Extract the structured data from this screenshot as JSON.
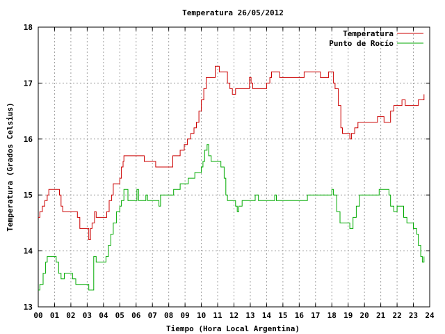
{
  "chart_data": {
    "type": "line",
    "title": "Temperatura 26/05/2012",
    "xlabel": "Tiempo (Hora Local Argentina)",
    "ylabel": "Temperatura (Grados Celsius)",
    "xlim": [
      0,
      24
    ],
    "ylim": [
      13,
      18
    ],
    "xticks": [
      "00",
      "01",
      "02",
      "03",
      "04",
      "05",
      "06",
      "07",
      "08",
      "09",
      "10",
      "11",
      "12",
      "13",
      "14",
      "15",
      "16",
      "17",
      "18",
      "19",
      "20",
      "21",
      "22",
      "23",
      "24"
    ],
    "yticks": [
      "13",
      "14",
      "15",
      "16",
      "17",
      "18"
    ],
    "grid": true,
    "legend_position": "top-right",
    "series": [
      {
        "name": "Temperatura",
        "color": "#cc0000",
        "points": [
          [
            0.0,
            14.6
          ],
          [
            0.1,
            14.7
          ],
          [
            0.25,
            14.8
          ],
          [
            0.4,
            14.9
          ],
          [
            0.55,
            15.0
          ],
          [
            0.65,
            15.1
          ],
          [
            1.2,
            15.1
          ],
          [
            1.3,
            15.0
          ],
          [
            1.4,
            14.8
          ],
          [
            1.5,
            14.7
          ],
          [
            1.6,
            14.7
          ],
          [
            2.2,
            14.7
          ],
          [
            2.4,
            14.6
          ],
          [
            2.55,
            14.4
          ],
          [
            3.0,
            14.4
          ],
          [
            3.1,
            14.2
          ],
          [
            3.2,
            14.4
          ],
          [
            3.3,
            14.5
          ],
          [
            3.45,
            14.7
          ],
          [
            3.55,
            14.6
          ],
          [
            4.1,
            14.6
          ],
          [
            4.2,
            14.7
          ],
          [
            4.35,
            14.9
          ],
          [
            4.5,
            15.0
          ],
          [
            4.6,
            15.2
          ],
          [
            4.9,
            15.2
          ],
          [
            5.0,
            15.3
          ],
          [
            5.1,
            15.5
          ],
          [
            5.2,
            15.6
          ],
          [
            5.25,
            15.7
          ],
          [
            6.4,
            15.7
          ],
          [
            6.5,
            15.6
          ],
          [
            7.1,
            15.6
          ],
          [
            7.2,
            15.5
          ],
          [
            8.1,
            15.5
          ],
          [
            8.25,
            15.7
          ],
          [
            8.5,
            15.7
          ],
          [
            8.7,
            15.8
          ],
          [
            8.95,
            15.9
          ],
          [
            9.15,
            16.0
          ],
          [
            9.35,
            16.1
          ],
          [
            9.55,
            16.2
          ],
          [
            9.7,
            16.3
          ],
          [
            9.85,
            16.5
          ],
          [
            10.0,
            16.7
          ],
          [
            10.15,
            16.9
          ],
          [
            10.3,
            17.1
          ],
          [
            10.5,
            17.1
          ],
          [
            10.7,
            17.1
          ],
          [
            10.85,
            17.3
          ],
          [
            11.0,
            17.3
          ],
          [
            11.1,
            17.2
          ],
          [
            11.5,
            17.2
          ],
          [
            11.6,
            17.0
          ],
          [
            11.75,
            16.9
          ],
          [
            11.9,
            16.8
          ],
          [
            12.1,
            16.9
          ],
          [
            12.8,
            16.9
          ],
          [
            12.95,
            17.1
          ],
          [
            13.05,
            17.0
          ],
          [
            13.15,
            16.9
          ],
          [
            13.9,
            16.9
          ],
          [
            14.0,
            17.0
          ],
          [
            14.2,
            17.1
          ],
          [
            14.3,
            17.2
          ],
          [
            14.7,
            17.2
          ],
          [
            14.8,
            17.1
          ],
          [
            16.2,
            17.1
          ],
          [
            16.3,
            17.2
          ],
          [
            17.1,
            17.2
          ],
          [
            17.3,
            17.1
          ],
          [
            17.8,
            17.2
          ],
          [
            18.0,
            17.2
          ],
          [
            18.1,
            17.0
          ],
          [
            18.2,
            16.9
          ],
          [
            18.4,
            16.6
          ],
          [
            18.55,
            16.2
          ],
          [
            18.65,
            16.1
          ],
          [
            19.0,
            16.1
          ],
          [
            19.1,
            16.0
          ],
          [
            19.2,
            16.1
          ],
          [
            19.4,
            16.2
          ],
          [
            19.6,
            16.3
          ],
          [
            20.6,
            16.3
          ],
          [
            20.8,
            16.4
          ],
          [
            21.1,
            16.4
          ],
          [
            21.2,
            16.3
          ],
          [
            21.4,
            16.3
          ],
          [
            21.6,
            16.5
          ],
          [
            21.8,
            16.6
          ],
          [
            22.2,
            16.6
          ],
          [
            22.3,
            16.7
          ],
          [
            22.5,
            16.6
          ],
          [
            23.1,
            16.6
          ],
          [
            23.3,
            16.7
          ],
          [
            23.5,
            16.7
          ],
          [
            23.65,
            16.8
          ]
        ]
      },
      {
        "name": "Punto de Rocío",
        "color": "#00aa00",
        "points": [
          [
            0.0,
            13.3
          ],
          [
            0.1,
            13.4
          ],
          [
            0.3,
            13.6
          ],
          [
            0.45,
            13.8
          ],
          [
            0.55,
            13.9
          ],
          [
            1.0,
            13.9
          ],
          [
            1.1,
            13.8
          ],
          [
            1.25,
            13.6
          ],
          [
            1.4,
            13.5
          ],
          [
            1.6,
            13.6
          ],
          [
            2.0,
            13.6
          ],
          [
            2.1,
            13.5
          ],
          [
            2.3,
            13.4
          ],
          [
            2.5,
            13.4
          ],
          [
            3.0,
            13.4
          ],
          [
            3.1,
            13.3
          ],
          [
            3.3,
            13.3
          ],
          [
            3.4,
            13.9
          ],
          [
            3.55,
            13.8
          ],
          [
            4.0,
            13.8
          ],
          [
            4.15,
            13.9
          ],
          [
            4.3,
            14.1
          ],
          [
            4.45,
            14.3
          ],
          [
            4.6,
            14.5
          ],
          [
            4.8,
            14.7
          ],
          [
            5.0,
            14.8
          ],
          [
            5.1,
            14.9
          ],
          [
            5.25,
            15.1
          ],
          [
            5.45,
            15.1
          ],
          [
            5.5,
            14.9
          ],
          [
            6.0,
            14.9
          ],
          [
            6.05,
            15.1
          ],
          [
            6.15,
            14.9
          ],
          [
            6.5,
            14.9
          ],
          [
            6.6,
            15.0
          ],
          [
            6.7,
            14.9
          ],
          [
            7.3,
            14.9
          ],
          [
            7.4,
            14.8
          ],
          [
            7.5,
            15.0
          ],
          [
            8.2,
            15.0
          ],
          [
            8.3,
            15.1
          ],
          [
            8.5,
            15.1
          ],
          [
            8.7,
            15.2
          ],
          [
            9.0,
            15.2
          ],
          [
            9.2,
            15.3
          ],
          [
            9.5,
            15.3
          ],
          [
            9.6,
            15.4
          ],
          [
            9.8,
            15.4
          ],
          [
            10.0,
            15.5
          ],
          [
            10.1,
            15.6
          ],
          [
            10.2,
            15.8
          ],
          [
            10.35,
            15.9
          ],
          [
            10.45,
            15.7
          ],
          [
            10.6,
            15.6
          ],
          [
            11.1,
            15.6
          ],
          [
            11.2,
            15.5
          ],
          [
            11.4,
            15.3
          ],
          [
            11.5,
            15.0
          ],
          [
            11.6,
            14.9
          ],
          [
            12.0,
            14.9
          ],
          [
            12.1,
            14.8
          ],
          [
            12.2,
            14.7
          ],
          [
            12.3,
            14.8
          ],
          [
            12.5,
            14.9
          ],
          [
            12.9,
            14.9
          ],
          [
            13.1,
            14.9
          ],
          [
            13.3,
            15.0
          ],
          [
            13.5,
            14.9
          ],
          [
            14.4,
            14.9
          ],
          [
            14.5,
            15.0
          ],
          [
            14.6,
            14.9
          ],
          [
            16.4,
            14.9
          ],
          [
            16.5,
            15.0
          ],
          [
            17.8,
            15.0
          ],
          [
            18.0,
            15.1
          ],
          [
            18.1,
            15.0
          ],
          [
            18.3,
            14.7
          ],
          [
            18.5,
            14.5
          ],
          [
            19.0,
            14.5
          ],
          [
            19.1,
            14.4
          ],
          [
            19.3,
            14.6
          ],
          [
            19.5,
            14.8
          ],
          [
            19.7,
            15.0
          ],
          [
            20.8,
            15.0
          ],
          [
            20.9,
            15.1
          ],
          [
            21.4,
            15.1
          ],
          [
            21.5,
            15.0
          ],
          [
            21.6,
            14.8
          ],
          [
            21.8,
            14.7
          ],
          [
            22.0,
            14.8
          ],
          [
            22.2,
            14.8
          ],
          [
            22.4,
            14.6
          ],
          [
            22.6,
            14.5
          ],
          [
            22.8,
            14.5
          ],
          [
            23.0,
            14.4
          ],
          [
            23.2,
            14.3
          ],
          [
            23.3,
            14.1
          ],
          [
            23.45,
            13.9
          ],
          [
            23.55,
            13.8
          ],
          [
            23.65,
            13.9
          ]
        ]
      }
    ]
  }
}
